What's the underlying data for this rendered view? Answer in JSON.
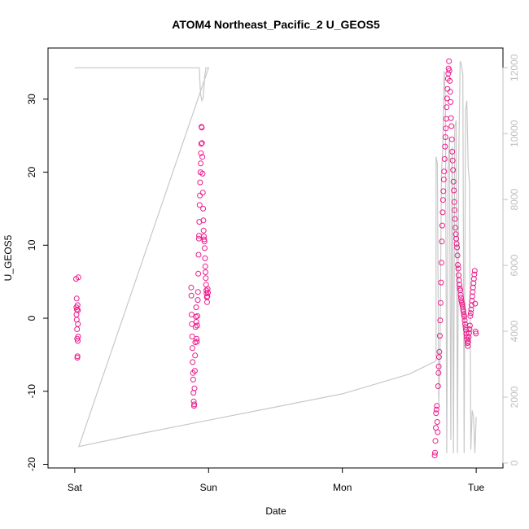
{
  "chart_data": {
    "type": "scatter",
    "title": "ATOM4 Northeast_Pacific_2 U_GEOS5",
    "xlabel": "Date",
    "ylabel": "U_GEOS5",
    "x_ticks": [
      {
        "label": "Sat",
        "value": 0
      },
      {
        "label": "Sun",
        "value": 1
      },
      {
        "label": "Mon",
        "value": 2
      },
      {
        "label": "Tue",
        "value": 3
      }
    ],
    "x_unit": "days",
    "xlim": [
      -0.2,
      3.2
    ],
    "ylim": [
      -20.5,
      37
    ],
    "y_ticks": [
      -20,
      -10,
      0,
      10,
      20,
      30
    ],
    "y2lim": [
      -150,
      12600
    ],
    "y2_ticks": [
      0,
      2000,
      4000,
      6000,
      8000,
      10000,
      12000
    ],
    "colors": {
      "points": "#ee1a8c",
      "altitude_line": "#c8c8c8",
      "axis": "#000000",
      "right_axis": "#c0c0c0"
    },
    "series": [
      {
        "kind": "points",
        "axis": "left",
        "x": [
          0.01,
          0.012,
          0.013,
          0.014,
          0.015,
          0.016,
          0.017,
          0.018,
          0.019,
          0.02,
          0.021,
          0.022,
          0.023,
          0.024,
          0.025,
          0.027,
          0.87,
          0.871,
          0.873,
          0.875,
          0.877,
          0.879,
          0.881,
          0.883,
          0.885,
          0.887,
          0.889,
          0.891,
          0.893,
          0.895,
          0.897,
          0.899,
          0.901,
          0.903,
          0.905,
          0.907,
          0.909,
          0.911,
          0.913,
          0.915,
          0.917,
          0.919,
          0.921,
          0.923,
          0.925,
          0.927,
          0.929,
          0.931,
          0.933,
          0.935,
          0.937,
          0.939,
          0.941,
          0.943,
          0.945,
          0.947,
          0.949,
          0.951,
          0.953,
          0.955,
          0.957,
          0.959,
          0.961,
          0.963,
          0.965,
          0.967,
          0.969,
          0.971,
          0.973,
          0.975,
          0.977,
          0.979,
          0.981,
          0.983,
          0.985,
          0.987,
          0.989,
          0.991,
          0.993,
          0.995,
          2.69,
          2.692,
          2.695,
          2.698,
          2.7,
          2.703,
          2.706,
          2.709,
          2.712,
          2.715,
          2.718,
          2.72,
          2.722,
          2.725,
          2.728,
          2.731,
          2.734,
          2.737,
          2.74,
          2.743,
          2.746,
          2.749,
          2.752,
          2.755,
          2.758,
          2.761,
          2.764,
          2.767,
          2.77,
          2.773,
          2.776,
          2.779,
          2.782,
          2.785,
          2.788,
          2.791,
          2.794,
          2.797,
          2.8,
          2.803,
          2.806,
          2.809,
          2.812,
          2.815,
          2.818,
          2.821,
          2.824,
          2.827,
          2.83,
          2.833,
          2.836,
          2.839,
          2.842,
          2.845,
          2.848,
          2.851,
          2.854,
          2.857,
          2.86,
          2.863,
          2.866,
          2.869,
          2.872,
          2.875,
          2.878,
          2.881,
          2.884,
          2.887,
          2.89,
          2.893,
          2.896,
          2.899,
          2.902,
          2.905,
          2.908,
          2.911,
          2.914,
          2.917,
          2.92,
          2.923,
          2.926,
          2.929,
          2.932,
          2.935,
          2.938,
          2.941,
          2.944,
          2.947,
          2.95,
          2.953,
          2.956,
          2.959,
          2.962,
          2.965,
          2.968,
          2.971,
          2.974,
          2.977,
          2.98,
          2.983,
          2.986,
          2.989,
          2.992,
          2.995,
          2.998
        ],
        "y": [
          5.4,
          1.5,
          0.5,
          2.7,
          -0.2,
          1.2,
          -1.5,
          -2.8,
          -5.4,
          -5.2,
          1.8,
          -3.1,
          -0.8,
          1.1,
          -2.5,
          5.6,
          4.2,
          3.1,
          0.5,
          -0.8,
          -2.5,
          -4.1,
          -6.0,
          -7.5,
          -8.4,
          -10.2,
          -11.4,
          -12.0,
          -11.8,
          -9.6,
          -7.2,
          -5.1,
          -3.3,
          -1.2,
          0.2,
          1.5,
          -0.5,
          -2.8,
          -3.2,
          -1.0,
          0.3,
          2.5,
          3.6,
          6.1,
          8.7,
          10.9,
          11.3,
          13.2,
          15.5,
          16.8,
          18.6,
          20.0,
          21.2,
          22.6,
          23.9,
          26.2,
          26.1,
          24.0,
          22.1,
          19.8,
          17.2,
          15.0,
          13.4,
          12.0,
          11.2,
          10.8,
          10.5,
          9.6,
          8.2,
          7.1,
          6.3,
          5.5,
          4.6,
          3.8,
          3.4,
          2.9,
          2.2,
          3.0,
          4.0,
          3.5,
          -18.8,
          -18.4,
          -16.8,
          -15.0,
          -13.0,
          -12.5,
          -12.0,
          -14.2,
          -15.6,
          -9.3,
          -7.5,
          -6.6,
          -5.3,
          -4.6,
          -2.4,
          -0.3,
          2.1,
          4.9,
          7.6,
          10.5,
          12.7,
          14.5,
          16.2,
          17.4,
          19.0,
          20.1,
          21.8,
          23.5,
          24.8,
          26.0,
          27.3,
          28.9,
          30.1,
          31.4,
          32.8,
          33.5,
          34.2,
          35.2,
          33.9,
          32.5,
          31.0,
          29.6,
          27.4,
          26.3,
          24.5,
          22.8,
          21.6,
          20.3,
          18.7,
          17.5,
          15.9,
          14.8,
          13.6,
          12.4,
          11.5,
          10.9,
          10.2,
          9.7,
          8.6,
          7.3,
          6.8,
          5.9,
          5.2,
          4.6,
          4.1,
          3.8,
          3.2,
          2.8,
          2.4,
          2.1,
          1.9,
          1.6,
          1.2,
          0.9,
          0.5,
          0.2,
          -0.3,
          -0.8,
          -1.2,
          -1.6,
          -2.1,
          -2.5,
          -2.9,
          -3.4,
          -3.8,
          -3.2,
          -2.6,
          -2.0,
          -1.5,
          -1.0,
          0.3,
          0.7,
          1.2,
          1.8,
          2.4,
          3.0,
          3.6,
          4.2,
          4.8,
          5.4,
          6.0,
          6.5,
          2.0,
          -1.8,
          -2.1
        ],
        "marker": "open-circle"
      },
      {
        "kind": "line",
        "axis": "right",
        "name": "",
        "x": [
          0.0,
          0.0,
          0.005,
          0.03,
          0.035,
          0.2,
          0.4,
          0.6,
          0.8,
          0.85,
          0.86,
          0.87,
          0.88,
          0.89,
          0.9,
          0.91,
          0.92,
          0.93,
          0.94,
          0.95,
          0.96,
          0.97,
          0.98,
          0.99,
          1.0,
          0.03,
          0.5,
          1.0,
          1.5,
          2.0,
          2.5,
          2.7,
          2.7,
          2.71,
          2.72,
          2.73,
          2.74,
          2.75,
          2.76,
          2.77,
          2.78,
          2.79,
          2.8,
          2.81,
          2.82,
          2.83,
          2.84,
          2.85,
          2.86,
          2.87,
          2.88,
          2.89,
          2.9,
          2.91,
          2.92,
          2.93,
          2.94,
          2.95,
          2.96,
          2.97,
          2.98,
          2.99,
          3.0
        ],
        "y": [
          12000,
          12000,
          12000,
          12000,
          12000,
          12000,
          12000,
          12000,
          12000,
          12000,
          12000,
          12000,
          12000,
          12000,
          12000,
          12000,
          12000,
          12000,
          11200,
          11000,
          11100,
          11700,
          12000,
          12000,
          12000,
          500,
          900,
          1300,
          1700,
          2100,
          2700,
          3100,
          9300,
          9100,
          1800,
          3300,
          8800,
          9500,
          11900,
          11100,
          300,
          8900,
          9900,
          700,
          9600,
          300,
          10200,
          10400,
          300,
          9300,
          12200,
          12100,
          11800,
          300,
          10700,
          11000,
          9000,
          8500,
          400,
          1600,
          1400,
          300,
          1400
        ],
        "style": "thin-grey"
      }
    ]
  }
}
